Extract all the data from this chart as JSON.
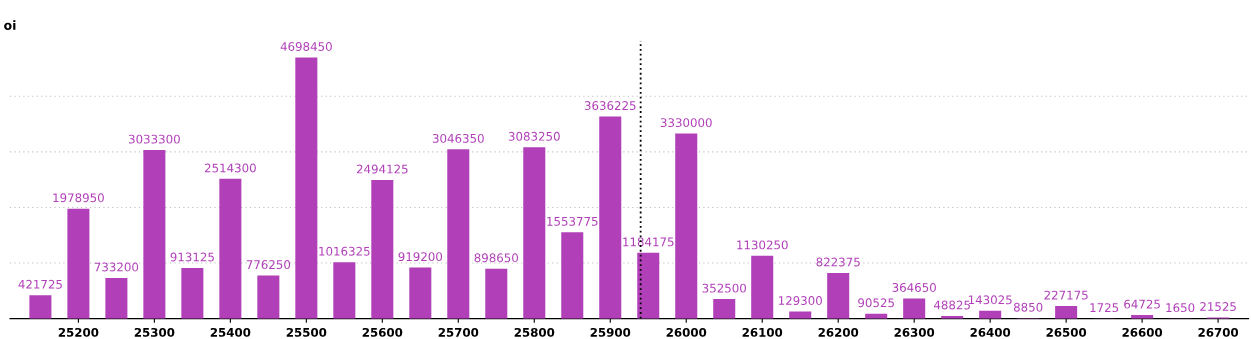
{
  "chart_data": {
    "type": "bar",
    "ylabel": "oi",
    "x": [
      25150,
      25200,
      25250,
      25300,
      25350,
      25400,
      25450,
      25500,
      25550,
      25600,
      25650,
      25700,
      25750,
      25800,
      25850,
      25900,
      25950,
      26000,
      26050,
      26100,
      26150,
      26200,
      26250,
      26300,
      26350,
      26400,
      26450,
      26500,
      26550,
      26600,
      26650,
      26700
    ],
    "values": [
      421725,
      1978950,
      733200,
      3033300,
      913125,
      2514300,
      776250,
      4698450,
      1016325,
      2494125,
      919200,
      3046350,
      898650,
      3083250,
      1553775,
      3636225,
      1184175,
      3330000,
      352500,
      1130250,
      129300,
      822375,
      90525,
      364650,
      48825,
      143025,
      8850,
      227175,
      1725,
      64725,
      1650,
      21525
    ],
    "color": "#b03fb8",
    "data_labels": true,
    "xlim": [
      25110,
      26740
    ],
    "xticks": [
      25200,
      25300,
      25400,
      25500,
      25600,
      25700,
      25800,
      25900,
      26000,
      26100,
      26200,
      26300,
      26400,
      26500,
      26600,
      26700
    ],
    "ylim": [
      0,
      5000000
    ],
    "yticks": [
      {
        "value": 1000000,
        "label": null
      },
      {
        "value": 2000000,
        "label": null
      },
      {
        "value": 3000000,
        "label": null
      },
      {
        "value": 4000000,
        "label": null
      }
    ],
    "grid": "y",
    "tick_labels": "x",
    "ref_lines": [
      {
        "axis": "x",
        "value": 25940,
        "color": "#000000",
        "line_style": "dotted"
      }
    ]
  }
}
